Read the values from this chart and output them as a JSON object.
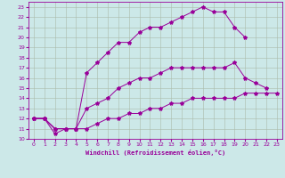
{
  "xlabel": "Windchill (Refroidissement éolien,°C)",
  "background_color": "#cce8e8",
  "line_color": "#990099",
  "xlim": [
    -0.5,
    23.5
  ],
  "ylim": [
    10,
    23.5
  ],
  "xticks": [
    0,
    1,
    2,
    3,
    4,
    5,
    6,
    7,
    8,
    9,
    10,
    11,
    12,
    13,
    14,
    15,
    16,
    17,
    18,
    19,
    20,
    21,
    22,
    23
  ],
  "yticks": [
    10,
    11,
    12,
    13,
    14,
    15,
    16,
    17,
    18,
    19,
    20,
    21,
    22,
    23
  ],
  "lines": [
    {
      "x": [
        0,
        1,
        2,
        3,
        4
      ],
      "y": [
        12,
        12,
        10.5,
        11,
        11
      ]
    },
    {
      "x": [
        0,
        1,
        2,
        3,
        4,
        5,
        6,
        7,
        8,
        9,
        10,
        11,
        12,
        13,
        14,
        15,
        16,
        17,
        18,
        19,
        20,
        21,
        22,
        23
      ],
      "y": [
        12,
        12,
        11,
        11,
        11,
        11,
        11.5,
        12,
        12,
        12.5,
        12.5,
        13,
        13,
        13.5,
        13.5,
        14,
        14,
        14,
        14,
        14,
        14.5,
        14.5,
        14.5,
        14.5
      ]
    },
    {
      "x": [
        0,
        1,
        2,
        3,
        4,
        5,
        6,
        7,
        8,
        9,
        10,
        11,
        12,
        13,
        14,
        15,
        16,
        17,
        18,
        19,
        20,
        21,
        22
      ],
      "y": [
        12,
        12,
        11,
        11,
        11,
        13,
        13.5,
        14,
        15,
        15.5,
        16,
        16,
        16.5,
        17,
        17,
        17,
        17,
        17,
        17,
        17.5,
        16,
        15.5,
        15
      ]
    },
    {
      "x": [
        0,
        1,
        2,
        3,
        4,
        5,
        6,
        7,
        8,
        9,
        10,
        11,
        12,
        13,
        14,
        15,
        16,
        17,
        18,
        19,
        20
      ],
      "y": [
        12,
        12,
        11,
        11,
        11,
        16.5,
        17.5,
        18.5,
        19.5,
        19.5,
        20.5,
        21,
        21,
        21.5,
        22,
        22.5,
        23,
        22.5,
        22.5,
        21,
        20
      ]
    }
  ]
}
